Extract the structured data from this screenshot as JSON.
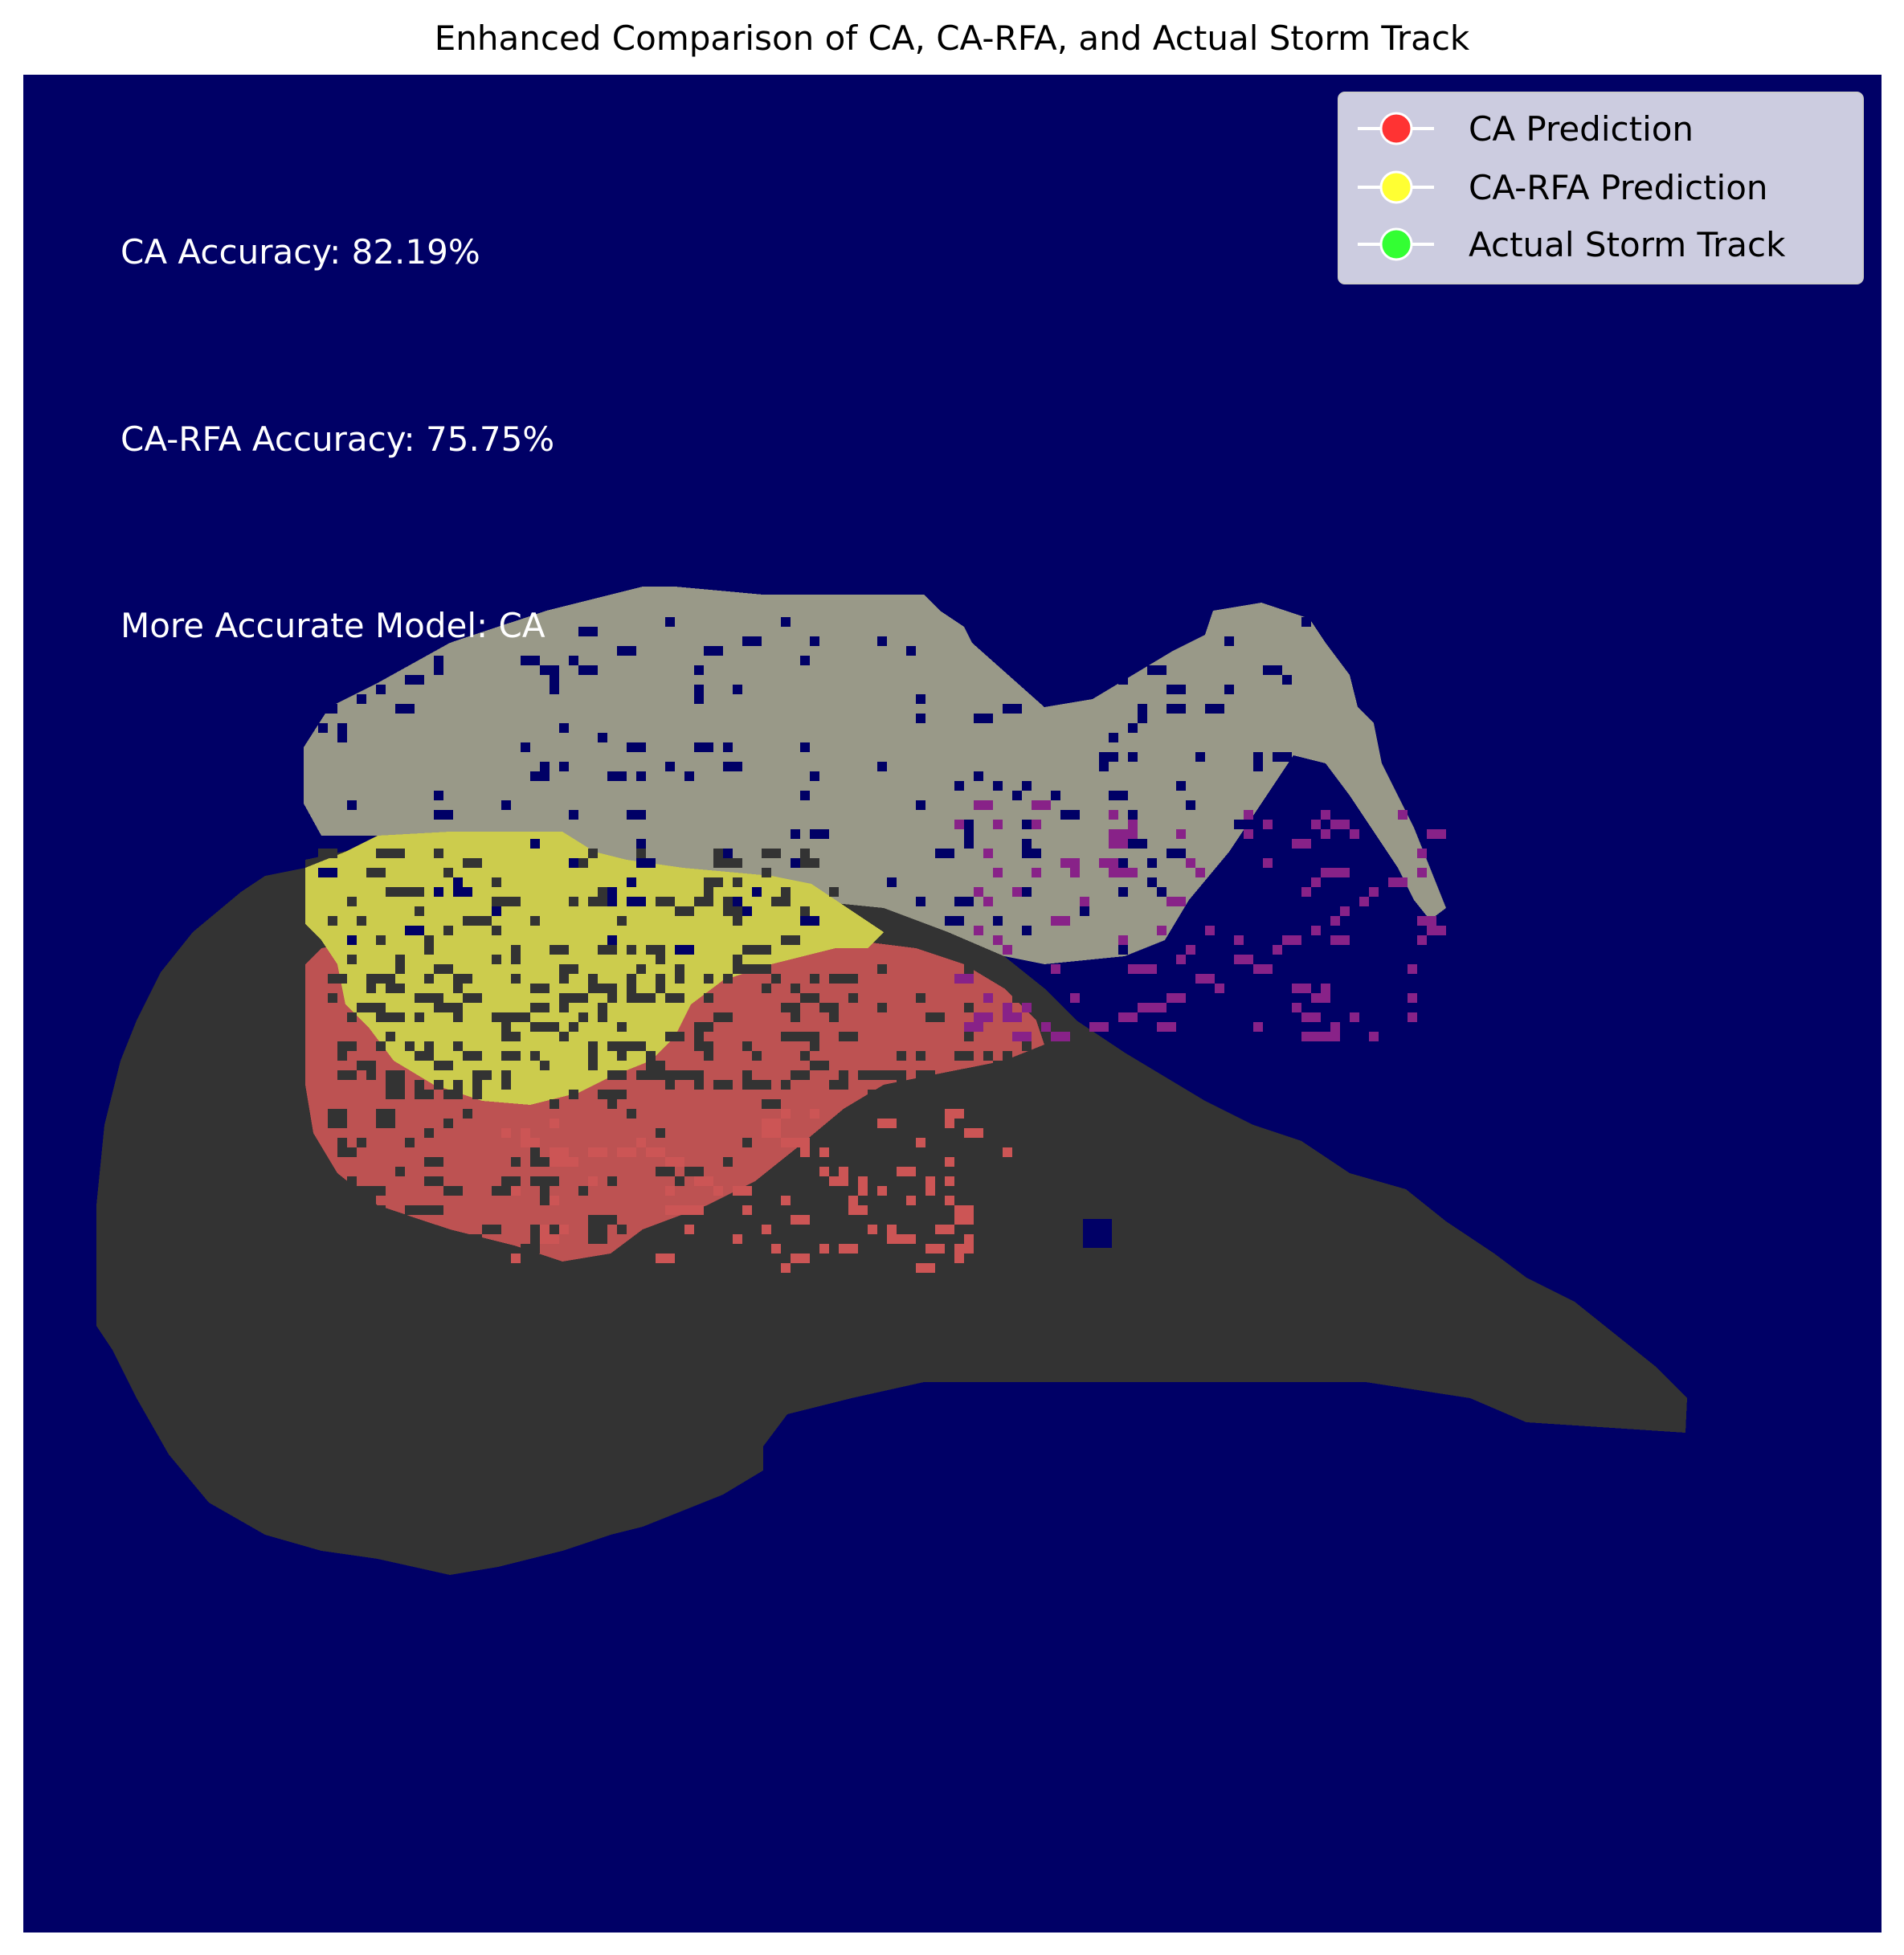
{
  "chart_data": {
    "type": "heatmap",
    "title": "Enhanced Comparison of CA, CA-RFA, and Actual Storm Track",
    "xlabel": "",
    "ylabel": "",
    "axes_visible": false,
    "grid": false,
    "legend_placement": "top-right",
    "colors": {
      "background": "#000066",
      "ca_only": "#cc5555",
      "both_predictions": "#cccc4d",
      "actual_storm_track": "#999988",
      "overlap_actual_ca": "#333333",
      "stray_cells": "#882288",
      "annotation_text": "#ffffff"
    },
    "legend": [
      {
        "label": "CA Prediction",
        "color": "#ff3333"
      },
      {
        "label": "CA-RFA Prediction",
        "color": "#ffff33"
      },
      {
        "label": "Actual Storm Track",
        "color": "#33ff33"
      }
    ],
    "annotations": [
      {
        "text": "CA Accuracy: 82.19%"
      },
      {
        "text": "CA-RFA Accuracy: 75.75%"
      },
      {
        "text": "More Accurate Model: CA"
      }
    ],
    "metrics": {
      "ca_accuracy_percent": 82.19,
      "ca_rfa_accuracy_percent": 75.75,
      "more_accurate_model": "CA"
    }
  }
}
